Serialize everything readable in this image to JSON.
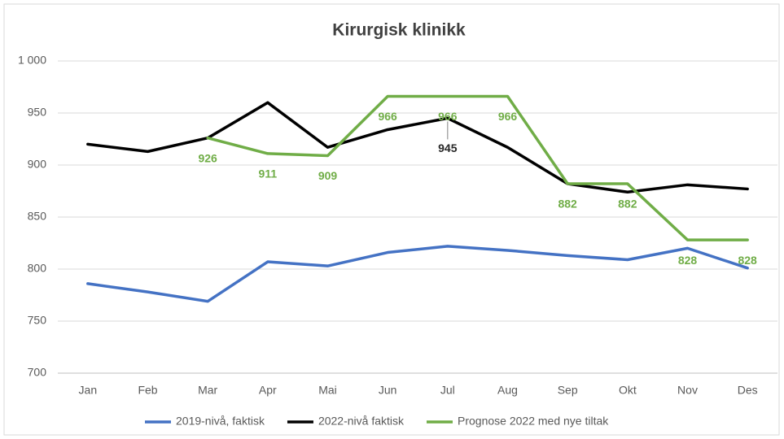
{
  "chart_data": {
    "type": "line",
    "title": "Kirurgisk klinikk",
    "categories": [
      "Jan",
      "Feb",
      "Mar",
      "Apr",
      "Mai",
      "Jun",
      "Jul",
      "Aug",
      "Sep",
      "Okt",
      "Nov",
      "Des"
    ],
    "series": [
      {
        "name": "2019-nivå, faktisk",
        "color": "#4472c4",
        "values": [
          786,
          778,
          769,
          807,
          803,
          816,
          822,
          818,
          813,
          809,
          820,
          801
        ]
      },
      {
        "name": "2022-nivå faktisk",
        "color": "#000000",
        "values": [
          920,
          913,
          926,
          960,
          917,
          934,
          945,
          917,
          882,
          874,
          881,
          877
        ],
        "value_labels": [
          null,
          null,
          null,
          null,
          null,
          null,
          "945",
          null,
          null,
          null,
          null,
          null
        ]
      },
      {
        "name": "Prognose 2022 med nye tiltak",
        "color": "#70ad47",
        "values": [
          null,
          null,
          926,
          911,
          909,
          966,
          966,
          966,
          882,
          882,
          828,
          828
        ],
        "value_labels": [
          null,
          null,
          "926",
          "911",
          "909",
          "966",
          "966",
          "966",
          "882",
          "882",
          "828",
          "828"
        ]
      }
    ],
    "ylim": [
      700,
      1000
    ],
    "yticks": [
      700,
      750,
      800,
      850,
      900,
      950,
      {
        "value": 1000,
        "label": "1 000"
      }
    ],
    "grid": true,
    "legend": "bottom"
  }
}
